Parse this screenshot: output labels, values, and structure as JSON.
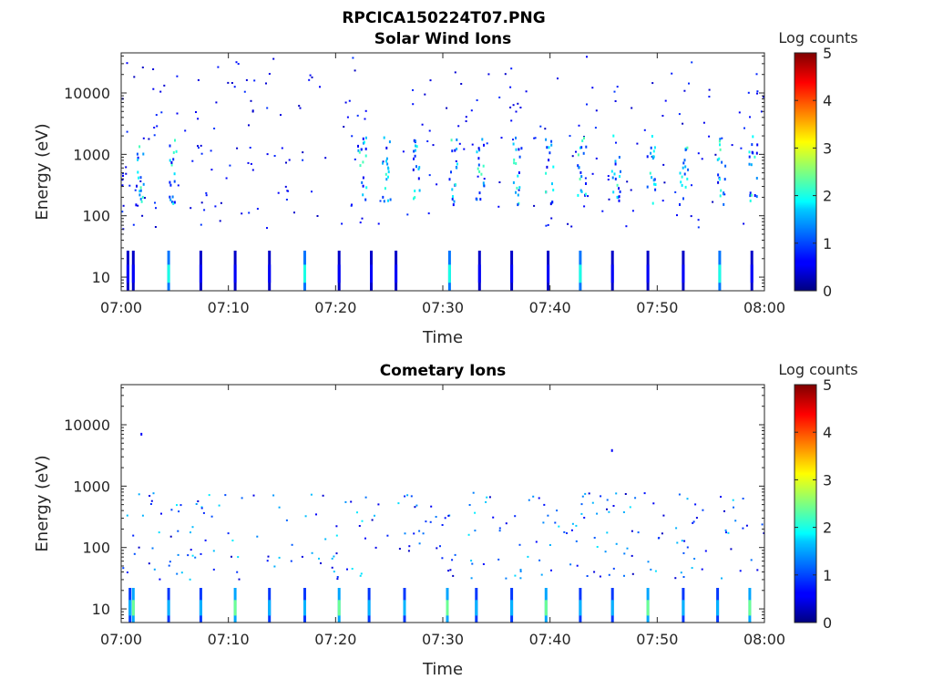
{
  "figure_title": "RPCICA150224T07.PNG",
  "chart_data": [
    {
      "type": "heatmap",
      "title": "Solar Wind Ions",
      "xlabel": "Time",
      "ylabel": "Energy (eV)",
      "x_ticks": [
        "07:00",
        "07:10",
        "07:20",
        "07:30",
        "07:40",
        "07:50",
        "08:00"
      ],
      "xlim": [
        "07:00",
        "08:00"
      ],
      "y_scale": "log",
      "ylim": [
        6,
        45000
      ],
      "y_ticks": [
        10,
        100,
        1000,
        10000
      ],
      "y_tick_labels": [
        "10",
        "100",
        "1000",
        "10000"
      ],
      "colorbar": {
        "label": "Log counts",
        "range": [
          0,
          5
        ],
        "ticks": [
          "0",
          "1",
          "2",
          "3",
          "4",
          "5"
        ],
        "colormap": "jet"
      },
      "features": {
        "low_energy_stripes_min": [
          0.5,
          1.0,
          4.3,
          7.3,
          10.5,
          13.7,
          17.0,
          20.2,
          23.2,
          25.5,
          30.5,
          33.3,
          36.3,
          39.7,
          42.7,
          45.7,
          49.0,
          52.3,
          55.7,
          58.7
        ],
        "low_energy_stripe_energy_eV": [
          6,
          27
        ],
        "bright_bands_min": [
          1.3,
          4.3,
          22.0,
          24.3,
          27.0,
          30.5,
          33.0,
          36.5,
          39.5,
          42.5,
          45.7,
          49.0,
          52.0,
          55.5,
          58.5
        ],
        "bright_band_energy_eV": [
          150,
          2000
        ],
        "sparse_speckle_energy_eV": [
          50,
          40000
        ]
      }
    },
    {
      "type": "heatmap",
      "title": "Cometary Ions",
      "xlabel": "Time",
      "ylabel": "Energy (eV)",
      "x_ticks": [
        "07:00",
        "07:10",
        "07:20",
        "07:30",
        "07:40",
        "07:50",
        "08:00"
      ],
      "xlim": [
        "07:00",
        "08:00"
      ],
      "y_scale": "log",
      "ylim": [
        6,
        45000
      ],
      "y_ticks": [
        10,
        100,
        1000,
        10000
      ],
      "y_tick_labels": [
        "10",
        "100",
        "1000",
        "10000"
      ],
      "colorbar": {
        "label": "Log counts",
        "range": [
          0,
          5
        ],
        "ticks": [
          "0",
          "1",
          "2",
          "3",
          "4",
          "5"
        ],
        "colormap": "jet"
      },
      "features": {
        "low_energy_stripes_min": [
          0.7,
          1.0,
          4.3,
          7.3,
          10.5,
          13.7,
          17.0,
          20.2,
          23.0,
          26.3,
          30.3,
          33.0,
          36.3,
          39.5,
          42.7,
          45.7,
          49.0,
          52.3,
          55.5,
          58.5
        ],
        "low_energy_stripe_energy_eV": [
          6,
          22
        ],
        "scattered_energy_eV": [
          30,
          800
        ],
        "isolated_points": [
          [
            1.8,
            7000
          ],
          [
            45.7,
            3800
          ]
        ]
      }
    }
  ]
}
